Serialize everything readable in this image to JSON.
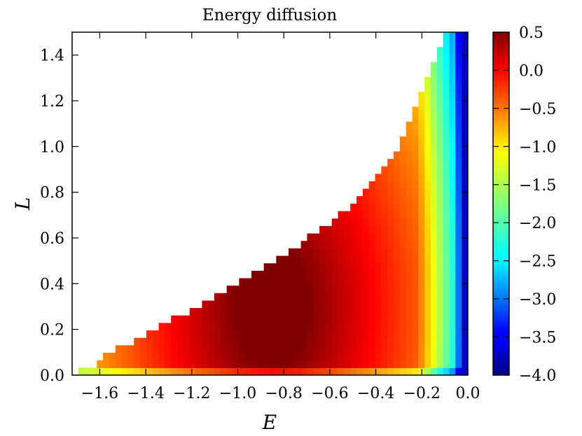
{
  "chart_data": {
    "type": "heatmap",
    "title": "Energy diffusion",
    "xlabel": "E",
    "ylabel": "L",
    "xlim": [
      -1.72,
      0.0
    ],
    "ylim": [
      0.0,
      1.5
    ],
    "x_ticks": [
      -1.6,
      -1.4,
      -1.2,
      -1.0,
      -0.8,
      -0.6,
      -0.4,
      -0.2,
      0.0
    ],
    "x_tick_labels": [
      "−1.6",
      "−1.4",
      "−1.2",
      "−1.0",
      "−0.8",
      "−0.6",
      "−0.4",
      "−0.2",
      "0.0"
    ],
    "y_ticks": [
      0.0,
      0.2,
      0.4,
      0.6,
      0.8,
      1.0,
      1.2,
      1.4
    ],
    "y_tick_labels": [
      "0.0",
      "0.2",
      "0.4",
      "0.6",
      "0.8",
      "1.0",
      "1.2",
      "1.4"
    ],
    "colorbar": {
      "colormap": "jet",
      "range": [
        -4.0,
        0.5
      ],
      "ticks": [
        0.5,
        0.0,
        -0.5,
        -1.0,
        -1.5,
        -2.0,
        -2.5,
        -3.0,
        -3.5,
        -4.0
      ],
      "tick_labels": [
        "0.5",
        "0.0",
        "−0.5",
        "−1.0",
        "−1.5",
        "−2.0",
        "−2.5",
        "−3.0",
        "−3.5",
        "−4.0"
      ]
    },
    "grid": {
      "nx": 64,
      "ny": 46,
      "cell_size_E": 0.027,
      "cell_size_L": 0.0326
    },
    "domain_boundary": {
      "E": [
        -1.72,
        -1.62,
        -1.55,
        -1.45,
        -1.35,
        -1.25,
        -1.15,
        -1.05,
        -0.95,
        -0.85,
        -0.75,
        -0.65,
        -0.55,
        -0.45,
        -0.35,
        -0.3,
        -0.25,
        -0.2,
        -0.15,
        -0.1
      ],
      "L_max": [
        0.01,
        0.05,
        0.1,
        0.15,
        0.21,
        0.26,
        0.32,
        0.38,
        0.43,
        0.49,
        0.56,
        0.63,
        0.71,
        0.8,
        0.92,
        1.0,
        1.11,
        1.23,
        1.38,
        1.5
      ]
    },
    "value_description": {
      "plateau_center_E": -0.85,
      "plateau_center_L": 0.3,
      "plateau_value": 0.5,
      "edge_min_value": -3.7
    }
  },
  "colors": {
    "background": "#ffffff",
    "axes": "#000000"
  }
}
